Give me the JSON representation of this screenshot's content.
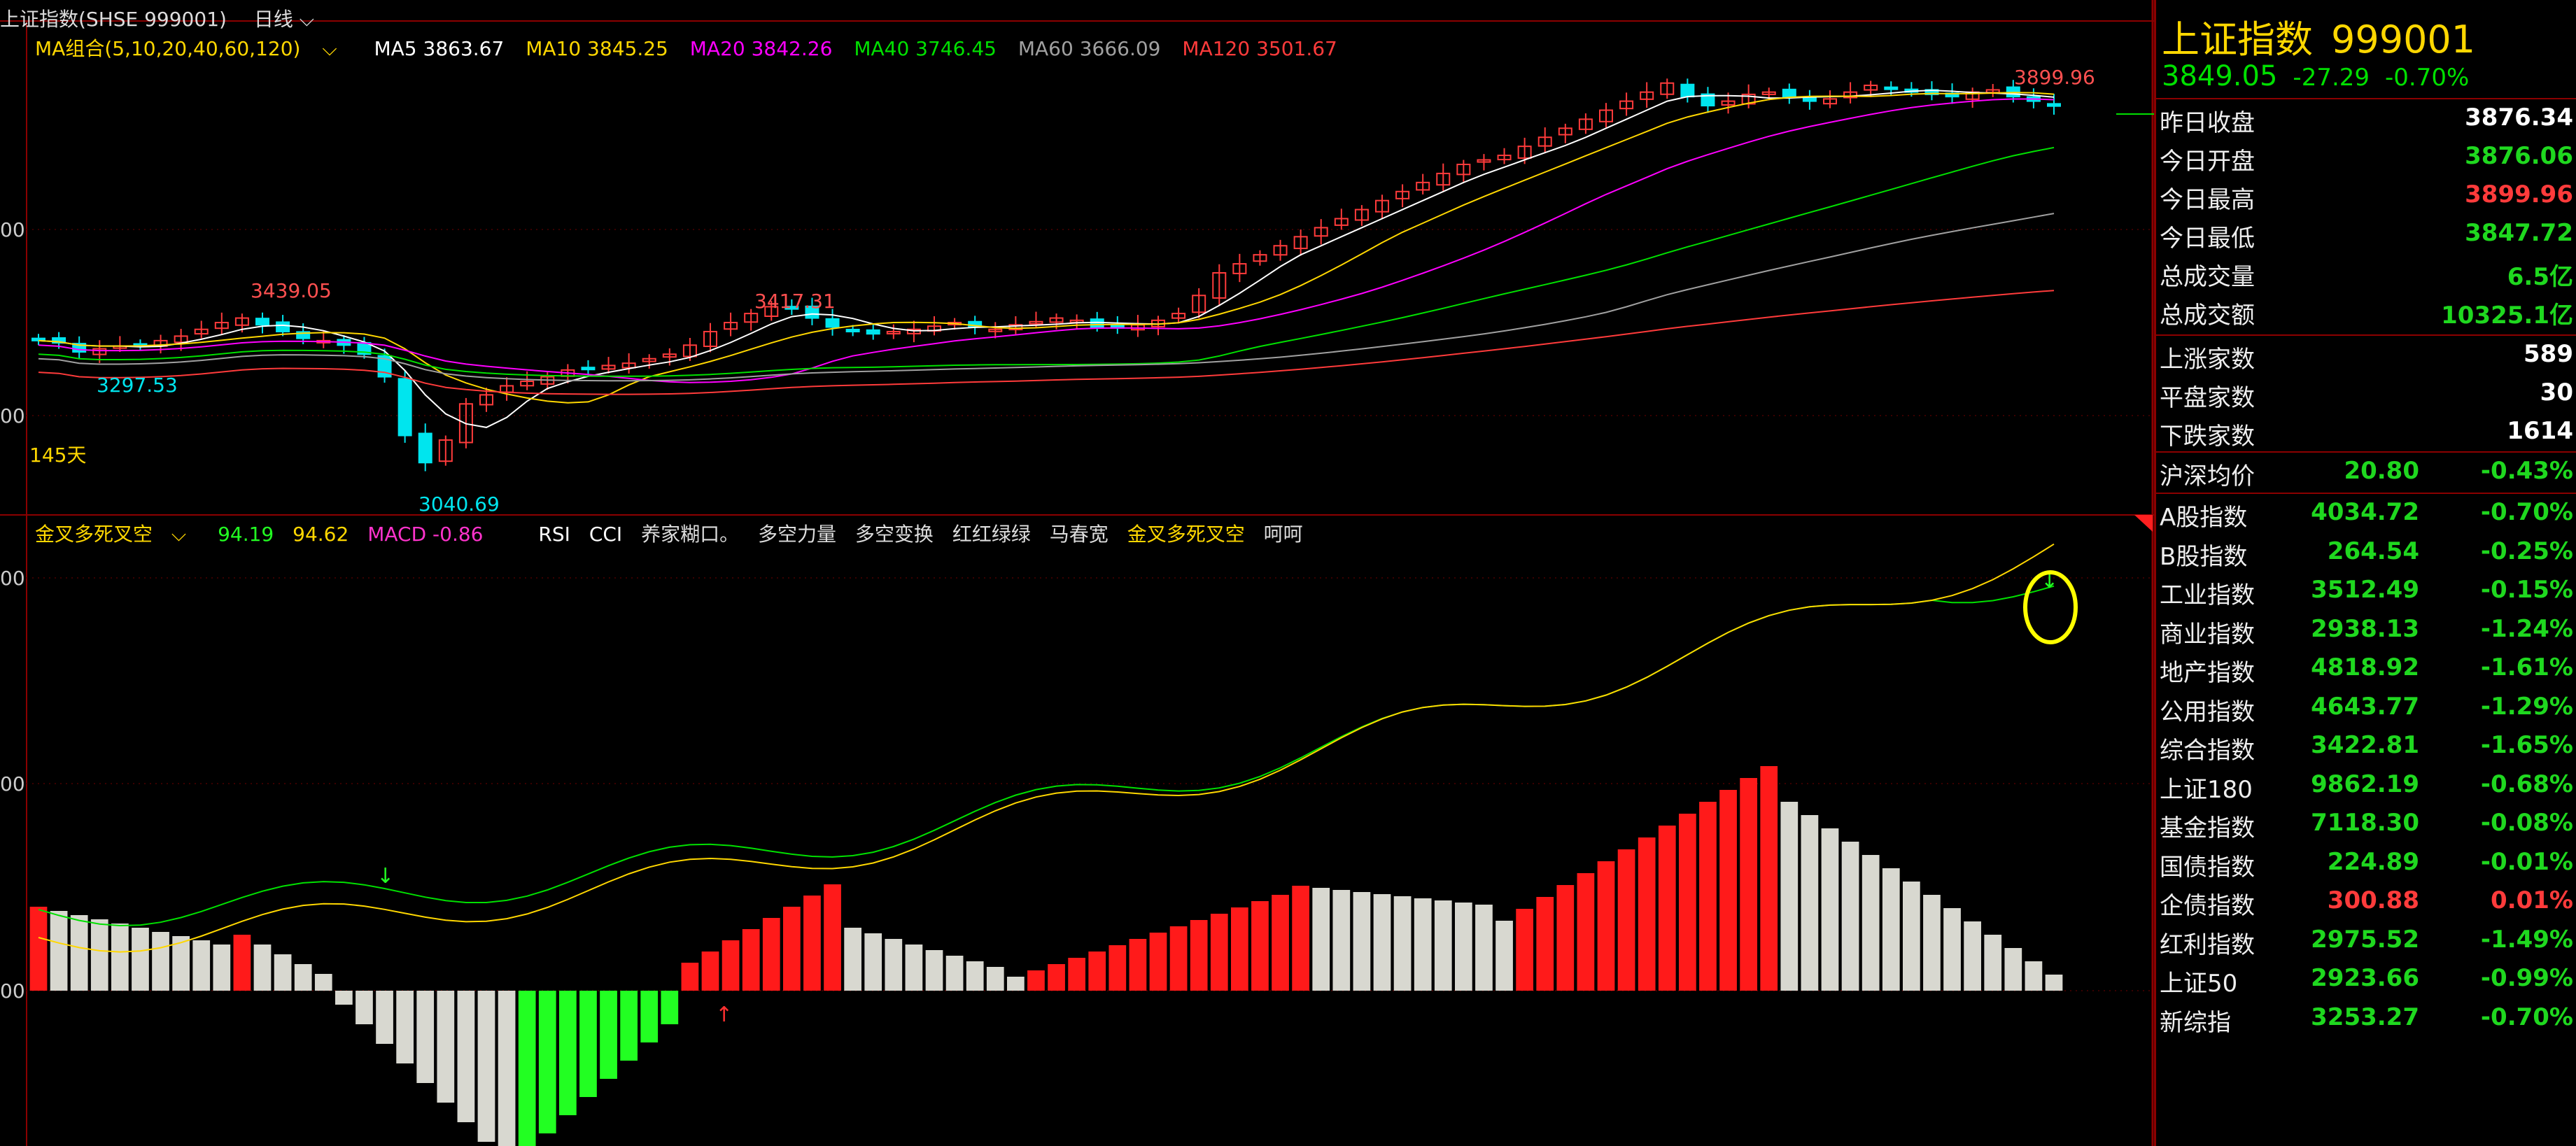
{
  "header": {
    "symbol": "上证指数(SHSE 999001)",
    "period": "日线",
    "period_chevron": "chevron-down-icon"
  },
  "ma_legend": {
    "group_label": "MA组合(5,10,20,40,60,120)",
    "ma5": "MA5 3863.67",
    "ma10": "MA10 3845.25",
    "ma20": "MA20 3842.26",
    "ma40": "MA40 3746.45",
    "ma60": "MA60 3666.09",
    "ma120": "MA120 3501.67"
  },
  "price_labels": {
    "high_right": "3899.96",
    "high_left": "3439.05",
    "high_mid": "3417.31",
    "low_left": "3297.53",
    "low_mid": "3040.69",
    "days": "145天"
  },
  "y_ticks": [
    "00",
    "00",
    "00",
    "00",
    "00"
  ],
  "indicator": {
    "name": "金叉多死叉空",
    "v1": "94.19",
    "v2": "94.62",
    "macd": "MACD -0.86",
    "tabs": [
      "RSI",
      "CCI",
      "养家糊口。",
      "多空力量",
      "多空变换",
      "红红绿绿",
      "马春宽",
      "金叉多死叉空",
      "呵呵"
    ]
  },
  "colors": {
    "up": "#ff3b3b",
    "down": "#00e5ee",
    "ma5": "#ffffff",
    "ma10": "#ffd700",
    "ma20": "#ff00ff",
    "ma40": "#00e000",
    "ma60": "#a0a0a0",
    "ma120": "#ff3b3b",
    "hist_red": "#ff1a1a",
    "hist_green": "#22ff22",
    "hist_grey": "#d8d8d0"
  },
  "chart_data": {
    "type": "candlestick",
    "title": "上证指数(SHSE 999001)",
    "period": "日线",
    "close_approx": [
      3330,
      3325,
      3305,
      3312,
      3318,
      3322,
      3330,
      3340,
      3355,
      3370,
      3380,
      3365,
      3350,
      3335,
      3330,
      3320,
      3300,
      3250,
      3120,
      3060,
      3110,
      3190,
      3210,
      3230,
      3240,
      3250,
      3265,
      3270,
      3275,
      3280,
      3290,
      3300,
      3320,
      3350,
      3370,
      3390,
      3405,
      3400,
      3380,
      3360,
      3350,
      3345,
      3350,
      3355,
      3362,
      3370,
      3360,
      3355,
      3365,
      3372,
      3380,
      3375,
      3360,
      3358,
      3365,
      3375,
      3390,
      3430,
      3480,
      3500,
      3520,
      3540,
      3560,
      3580,
      3600,
      3620,
      3640,
      3660,
      3680,
      3700,
      3720,
      3730,
      3740,
      3760,
      3780,
      3800,
      3820,
      3840,
      3860,
      3880,
      3900,
      3870,
      3850,
      3860,
      3875,
      3880,
      3870,
      3860,
      3865,
      3880,
      3895,
      3890,
      3880,
      3875,
      3870,
      3880,
      3885,
      3870,
      3860,
      3849.05
    ],
    "highs": {
      "right": 3899.96,
      "left": 3439.05,
      "mid": 3417.31
    },
    "lows": {
      "left": 3297.53,
      "mid": 3040.69
    }
  },
  "panel": {
    "name": "上证指数",
    "code": "999001",
    "price": "3849.05",
    "change": "-27.29",
    "change_pct": "-0.70%",
    "stats": [
      {
        "label": "昨日收盘",
        "value": "3876.34",
        "color": "white"
      },
      {
        "label": "今日开盘",
        "value": "3876.06",
        "color": "green"
      },
      {
        "label": "今日最高",
        "value": "3899.96",
        "color": "red"
      },
      {
        "label": "今日最低",
        "value": "3847.72",
        "color": "green"
      },
      {
        "label": "总成交量",
        "value": "6.5亿",
        "color": "green"
      },
      {
        "label": "总成交额",
        "value": "10325.1亿",
        "color": "green"
      }
    ],
    "breadth": [
      {
        "label": "上涨家数",
        "value": "589",
        "color": "white"
      },
      {
        "label": "平盘家数",
        "value": "30",
        "color": "white"
      },
      {
        "label": "下跌家数",
        "value": "1614",
        "color": "white"
      }
    ],
    "avg": {
      "label": "沪深均价",
      "value": "20.80",
      "pct": "-0.43%"
    },
    "indices": [
      {
        "label": "A股指数",
        "value": "4034.72",
        "pct": "-0.70%",
        "color": "green"
      },
      {
        "label": "B股指数",
        "value": "264.54",
        "pct": "-0.25%",
        "color": "green"
      },
      {
        "label": "工业指数",
        "value": "3512.49",
        "pct": "-0.15%",
        "color": "green"
      },
      {
        "label": "商业指数",
        "value": "2938.13",
        "pct": "-1.24%",
        "color": "green"
      },
      {
        "label": "地产指数",
        "value": "4818.92",
        "pct": "-1.61%",
        "color": "green"
      },
      {
        "label": "公用指数",
        "value": "4643.77",
        "pct": "-1.29%",
        "color": "green"
      },
      {
        "label": "综合指数",
        "value": "3422.81",
        "pct": "-1.65%",
        "color": "green"
      },
      {
        "label": "上证180",
        "value": "9862.19",
        "pct": "-0.68%",
        "color": "green"
      },
      {
        "label": "基金指数",
        "value": "7118.30",
        "pct": "-0.08%",
        "color": "green"
      },
      {
        "label": "国债指数",
        "value": "224.89",
        "pct": "-0.01%",
        "color": "green"
      },
      {
        "label": "企债指数",
        "value": "300.88",
        "pct": "0.01%",
        "color": "red"
      },
      {
        "label": "红利指数",
        "value": "2975.52",
        "pct": "-1.49%",
        "color": "green"
      },
      {
        "label": "上证50",
        "value": "2923.66",
        "pct": "-0.99%",
        "color": "green"
      },
      {
        "label": "新综指",
        "value": "3253.27",
        "pct": "-0.70%",
        "color": "green"
      }
    ]
  }
}
